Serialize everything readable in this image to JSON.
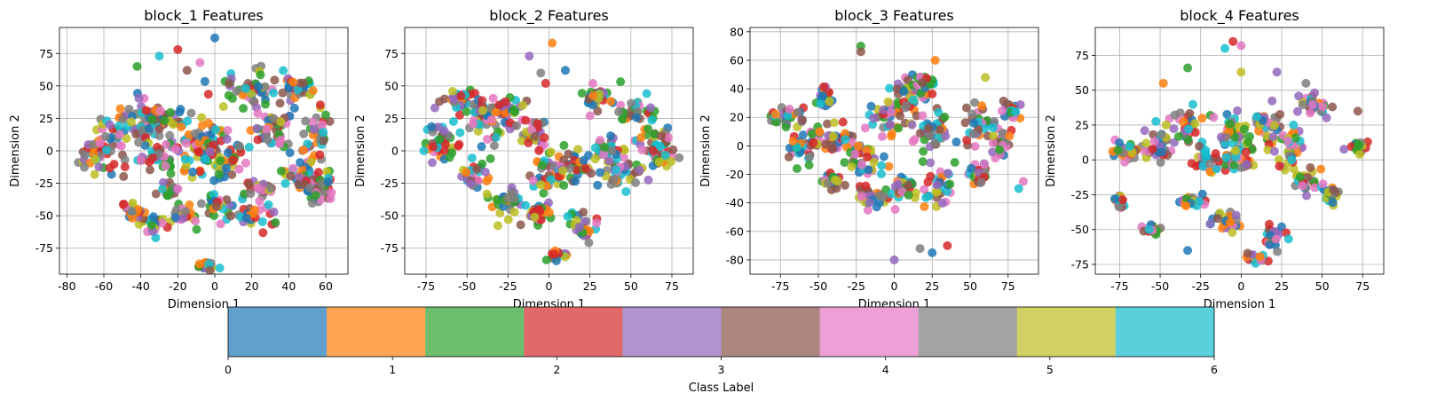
{
  "chart_data": [
    {
      "type": "scatter",
      "title": "block_1 Features",
      "xlabel": "Dimension 1",
      "ylabel": "Dimension 2",
      "xlim": [
        -84,
        72
      ],
      "ylim": [
        -95,
        95
      ],
      "xticks": [
        -80,
        -60,
        -40,
        -20,
        0,
        20,
        40,
        60
      ],
      "yticks": [
        -75,
        -50,
        -25,
        0,
        25,
        50,
        75
      ],
      "grid": true,
      "clusters": [
        [
          -60,
          0,
          12,
          18
        ],
        [
          -45,
          22,
          14,
          14
        ],
        [
          -28,
          25,
          12,
          12
        ],
        [
          -10,
          8,
          16,
          20
        ],
        [
          -30,
          -5,
          10,
          12
        ],
        [
          22,
          48,
          16,
          12
        ],
        [
          45,
          48,
          8,
          8
        ],
        [
          5,
          -5,
          12,
          14
        ],
        [
          30,
          15,
          12,
          18
        ],
        [
          55,
          10,
          8,
          22
        ],
        [
          45,
          -20,
          10,
          10
        ],
        [
          55,
          -30,
          8,
          12
        ],
        [
          20,
          -50,
          12,
          10
        ],
        [
          -15,
          -50,
          10,
          8
        ],
        [
          -35,
          -55,
          8,
          8
        ],
        [
          -45,
          -45,
          5,
          6
        ],
        [
          -25,
          -30,
          5,
          5
        ],
        [
          0,
          -40,
          6,
          6
        ],
        [
          -5,
          -88,
          6,
          3
        ],
        [
          25,
          -30,
          8,
          8
        ]
      ],
      "outliers": [
        [
          0,
          87
        ],
        [
          -20,
          78
        ],
        [
          -8,
          68
        ],
        [
          -30,
          73
        ],
        [
          -42,
          65
        ],
        [
          -15,
          62
        ]
      ]
    },
    {
      "type": "scatter",
      "title": "block_2 Features",
      "xlabel": "Dimension 1",
      "ylabel": "Dimension 2",
      "xlim": [
        -88,
        88
      ],
      "ylim": [
        -95,
        95
      ],
      "xticks": [
        -75,
        -50,
        -25,
        0,
        25,
        50,
        75
      ],
      "yticks": [
        -75,
        -50,
        -25,
        0,
        25,
        50,
        75
      ],
      "grid": true,
      "clusters": [
        [
          -65,
          5,
          10,
          15
        ],
        [
          -55,
          40,
          12,
          10
        ],
        [
          -40,
          25,
          12,
          15
        ],
        [
          -25,
          30,
          10,
          12
        ],
        [
          -10,
          15,
          8,
          10
        ],
        [
          0,
          -15,
          10,
          15
        ],
        [
          15,
          -10,
          12,
          12
        ],
        [
          30,
          40,
          10,
          10
        ],
        [
          55,
          30,
          10,
          8
        ],
        [
          65,
          10,
          10,
          12
        ],
        [
          45,
          -15,
          12,
          12
        ],
        [
          20,
          -60,
          10,
          10
        ],
        [
          -25,
          -40,
          10,
          12
        ],
        [
          -45,
          -20,
          10,
          10
        ],
        [
          -8,
          -50,
          8,
          8
        ],
        [
          5,
          -80,
          4,
          4
        ],
        [
          70,
          -5,
          6,
          8
        ],
        [
          35,
          0,
          8,
          10
        ]
      ],
      "outliers": [
        [
          2,
          83
        ],
        [
          -12,
          73
        ],
        [
          -5,
          60
        ],
        [
          10,
          62
        ],
        [
          -2,
          52
        ],
        [
          25,
          27
        ]
      ]
    },
    {
      "type": "scatter",
      "title": "block_3 Features",
      "xlabel": "Dimension 1",
      "ylabel": "Dimension 2",
      "xlim": [
        -95,
        95
      ],
      "ylim": [
        -90,
        83
      ],
      "xticks": [
        -75,
        -50,
        -25,
        0,
        25,
        50,
        75
      ],
      "yticks": [
        -80,
        -60,
        -40,
        -20,
        0,
        20,
        40,
        60,
        80
      ],
      "grid": true,
      "clusters": [
        [
          -70,
          20,
          12,
          8
        ],
        [
          -60,
          0,
          12,
          10
        ],
        [
          -45,
          35,
          6,
          6
        ],
        [
          -40,
          5,
          12,
          10
        ],
        [
          -20,
          -10,
          12,
          12
        ],
        [
          -5,
          20,
          10,
          12
        ],
        [
          10,
          35,
          12,
          15
        ],
        [
          25,
          10,
          12,
          12
        ],
        [
          30,
          -30,
          10,
          12
        ],
        [
          55,
          15,
          10,
          12
        ],
        [
          70,
          5,
          8,
          10
        ],
        [
          75,
          25,
          8,
          6
        ],
        [
          5,
          -30,
          12,
          10
        ],
        [
          -15,
          -35,
          8,
          8
        ],
        [
          -40,
          -25,
          6,
          5
        ],
        [
          20,
          45,
          8,
          6
        ],
        [
          55,
          -20,
          8,
          8
        ]
      ],
      "outliers": [
        [
          -22,
          70
        ],
        [
          -22,
          66
        ],
        [
          60,
          48
        ],
        [
          27,
          60
        ],
        [
          0,
          -80
        ],
        [
          17,
          -72
        ],
        [
          25,
          -75
        ],
        [
          35,
          -70
        ],
        [
          85,
          -25
        ],
        [
          82,
          -30
        ]
      ]
    },
    {
      "type": "scatter",
      "title": "block_4 Features",
      "xlabel": "Dimension 1",
      "ylabel": "Dimension 2",
      "xlim": [
        -90,
        88
      ],
      "ylim": [
        -82,
        95
      ],
      "xticks": [
        -75,
        -50,
        -25,
        0,
        25,
        50,
        75
      ],
      "yticks": [
        -75,
        -50,
        -25,
        0,
        25,
        50,
        75
      ],
      "grid": true,
      "clusters": [
        [
          -70,
          5,
          10,
          8
        ],
        [
          -50,
          10,
          10,
          10
        ],
        [
          -35,
          25,
          10,
          10
        ],
        [
          -20,
          0,
          12,
          12
        ],
        [
          -5,
          20,
          10,
          12
        ],
        [
          15,
          25,
          10,
          10
        ],
        [
          30,
          5,
          10,
          12
        ],
        [
          40,
          -15,
          8,
          8
        ],
        [
          55,
          -25,
          6,
          10
        ],
        [
          20,
          -55,
          8,
          8
        ],
        [
          10,
          -70,
          6,
          4
        ],
        [
          -10,
          -45,
          8,
          8
        ],
        [
          -30,
          -30,
          8,
          6
        ],
        [
          -75,
          -30,
          3,
          5
        ],
        [
          -55,
          -50,
          4,
          4
        ],
        [
          0,
          0,
          8,
          10
        ],
        [
          45,
          40,
          8,
          8
        ],
        [
          72,
          10,
          5,
          5
        ]
      ],
      "outliers": [
        [
          -5,
          85
        ],
        [
          0,
          82
        ],
        [
          -10,
          80
        ],
        [
          -33,
          66
        ],
        [
          72,
          35
        ],
        [
          0,
          63
        ],
        [
          -48,
          55
        ],
        [
          22,
          63
        ],
        [
          40,
          55
        ],
        [
          -33,
          -65
        ]
      ]
    }
  ],
  "palette": [
    "#1f77b4",
    "#ff7f0e",
    "#2ca02c",
    "#d62728",
    "#9467bd",
    "#8c564b",
    "#e377c2",
    "#7f7f7f",
    "#bcbd22",
    "#17becf"
  ],
  "colorbar": {
    "label": "Class Label",
    "ticks": [
      "0",
      "1",
      "2",
      "3",
      "4",
      "5",
      "6"
    ],
    "colors": [
      "#61a0cc",
      "#ffa552",
      "#6cbe6c",
      "#e26969",
      "#b193cf",
      "#ad877f",
      "#eca0d6",
      "#a3a3a3",
      "#d1d263",
      "#5bcfdb"
    ]
  }
}
